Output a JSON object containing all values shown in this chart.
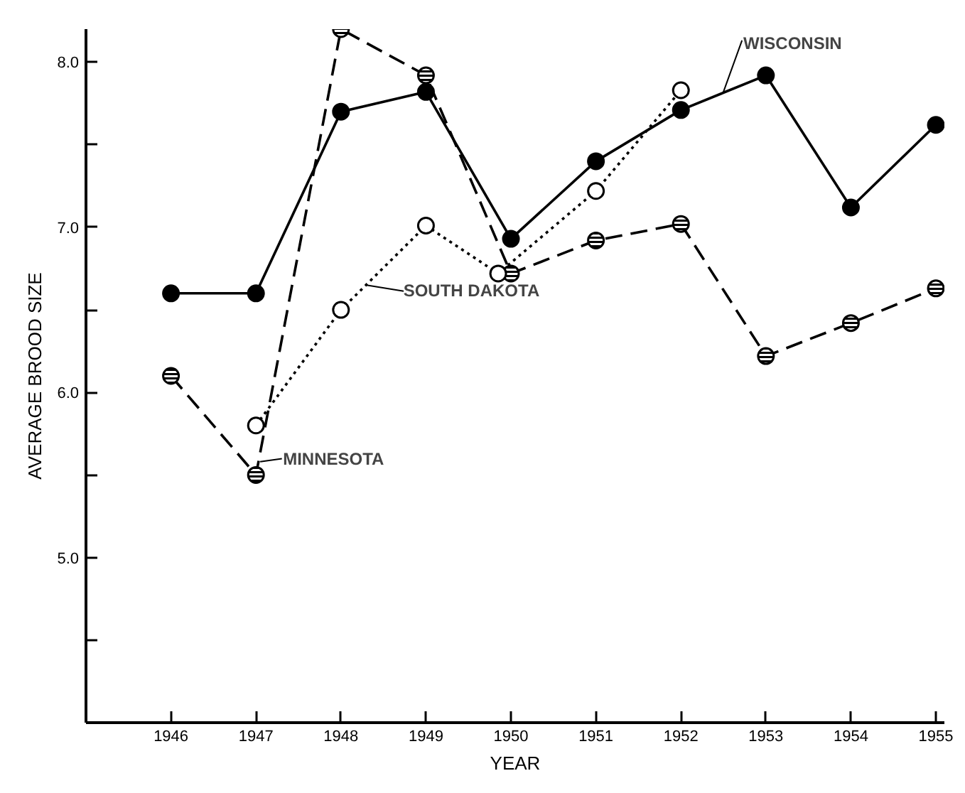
{
  "chart_data": {
    "type": "line",
    "xlabel": "YEAR",
    "ylabel": "AVERAGE BROOD SIZE",
    "x": [
      1946,
      1947,
      1948,
      1949,
      1950,
      1951,
      1952,
      1953,
      1954,
      1955
    ],
    "series": [
      {
        "color": "#000000",
        "line_style": "solid",
        "values": [
          6.6,
          6.6,
          7.7,
          7.82,
          6.93,
          7.4,
          7.71,
          7.92,
          7.12,
          7.62
        ]
      },
      {
        "color": "#000000",
        "line_style": "dashed",
        "values": [
          6.1,
          5.5,
          8.2,
          7.92,
          6.72,
          6.92,
          7.02,
          6.22,
          6.42,
          6.63
        ]
      },
      {
        "color": "#000000",
        "line_style": "dotted",
        "x": [
          1947,
          1948,
          1949,
          1949.85,
          1951,
          1952
        ],
        "values": [
          5.8,
          6.5,
          7.01,
          6.72,
          7.22,
          7.83
        ]
      }
    ],
    "annotations": [
      {
        "text": "WISCONSIN",
        "x": 1952.5,
        "y": 7.82
      },
      {
        "text": "SOUTH DAKOTA",
        "x": 1948.3,
        "y": 6.65
      },
      {
        "text": "MINNESOTA",
        "x": 1947.05,
        "y": 5.58
      }
    ],
    "marker": "circle",
    "grid": false,
    "xlim": [
      1945,
      1955.1
    ],
    "ylim": [
      4.0,
      8.2
    ],
    "xticks": [
      1946,
      1947,
      1948,
      1949,
      1950,
      1951,
      1952,
      1953,
      1954,
      1955
    ],
    "yticks": [
      {
        "value": 4.5,
        "label": null
      },
      {
        "value": 5,
        "label": "5.0"
      },
      {
        "value": 5.5,
        "label": null
      },
      {
        "value": 6,
        "label": "6.0"
      },
      {
        "value": 6.5,
        "label": null
      },
      {
        "value": 7,
        "label": "7.0"
      },
      {
        "value": 7.5,
        "label": null
      },
      {
        "value": 8,
        "label": "8.0"
      }
    ]
  }
}
